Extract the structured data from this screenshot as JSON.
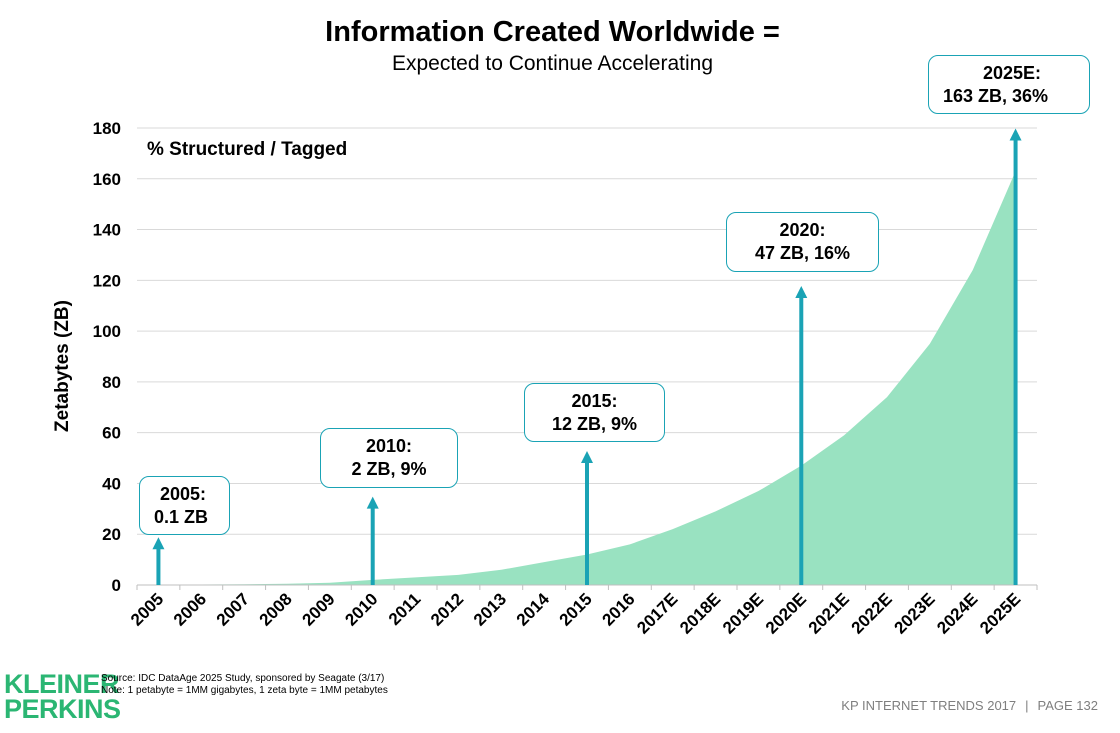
{
  "title": "Information Created Worldwide =",
  "subtitle": "Expected to Continue Accelerating",
  "chart_data": {
    "type": "area",
    "title": "Information Created Worldwide =",
    "subtitle": "Expected to Continue Accelerating",
    "ylabel": "Zetabytes (ZB)",
    "xlabel": "",
    "ylim": [
      0,
      180
    ],
    "yticks": [
      0,
      20,
      40,
      60,
      80,
      100,
      120,
      140,
      160,
      180
    ],
    "categories": [
      "2005",
      "2006",
      "2007",
      "2008",
      "2009",
      "2010",
      "2011",
      "2012",
      "2013",
      "2014",
      "2015",
      "2016",
      "2017E",
      "2018E",
      "2019E",
      "2020E",
      "2021E",
      "2022E",
      "2023E",
      "2024E",
      "2025E"
    ],
    "series": [
      {
        "values": [
          0.1,
          0.2,
          0.3,
          0.5,
          0.9,
          2,
          3,
          4,
          6,
          9,
          12,
          16,
          22,
          29,
          37,
          47,
          59,
          74,
          95,
          124,
          163
        ]
      }
    ],
    "area_color": "#99e2c1",
    "arrow_color": "#1aa3b5",
    "annotation_header": "% Structured / Tagged",
    "annotations": [
      {
        "year": "2005",
        "line1": "2005:",
        "line2": "0.1 ZB",
        "arrow_to": 18
      },
      {
        "year": "2010",
        "line1": "2010:",
        "line2": "2 ZB, 9%",
        "arrow_to": 34
      },
      {
        "year": "2015",
        "line1": "2015:",
        "line2": "12 ZB, 9%",
        "arrow_to": 52
      },
      {
        "year": "2020E",
        "line1": "2020:",
        "line2": "47 ZB, 16%",
        "arrow_to": 117
      },
      {
        "year": "2025E",
        "line1": "2025E:",
        "line2": "163 ZB, 36%",
        "arrow_to": 179
      }
    ],
    "grid": true,
    "legend": "none"
  },
  "footer": {
    "logo_line1": "KLEINER",
    "logo_line2": "PERKINS",
    "source_line1": "Source: IDC DataAge 2025 Study, sponsored by Seagate (3/17)",
    "source_line2": "Note: 1 petabyte = 1MM gigabytes, 1 zeta byte = 1MM petabytes",
    "report": "KP INTERNET TRENDS 2017",
    "separator": "|",
    "page": "PAGE 132"
  }
}
